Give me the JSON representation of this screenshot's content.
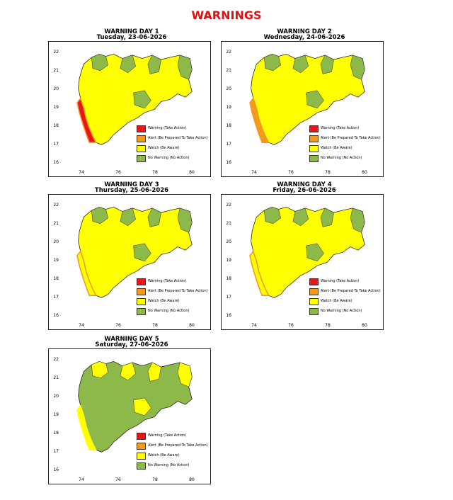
{
  "page_title": "WARNINGS",
  "legend": [
    {
      "label": "Warning (Take Action)",
      "color": "#e8161b"
    },
    {
      "label": "Alert (Be Prepared To Take Action)",
      "color": "#f39a1e"
    },
    {
      "label": "Watch (Be Aware)",
      "color": "#ffff00"
    },
    {
      "label": "No Warning (No Action)",
      "color": "#8db84a"
    }
  ],
  "axes": {
    "y_ticks": [
      "22",
      "21",
      "20",
      "19",
      "18",
      "17",
      "16"
    ],
    "x_ticks": [
      "74",
      "76",
      "78",
      "80"
    ]
  },
  "panels": [
    {
      "title": "WARNING DAY 1",
      "subtitle": "Tuesday, 23-06-2026",
      "dominant": "#ffff00",
      "secondary": "#8db84a",
      "coastal": "#e8161b",
      "coastal_edge": "#f39a1e"
    },
    {
      "title": "WARNING DAY 2",
      "subtitle": "Wednesday, 24-06-2026",
      "dominant": "#ffff00",
      "secondary": "#8db84a",
      "coastal": "#f39a1e",
      "coastal_edge": "#f39a1e"
    },
    {
      "title": "WARNING DAY 3",
      "subtitle": "Thursday, 25-06-2026",
      "dominant": "#ffff00",
      "secondary": "#8db84a",
      "coastal": "#ffff00",
      "coastal_edge": "#f39a1e"
    },
    {
      "title": "WARNING DAY 4",
      "subtitle": "Friday, 26-06-2026",
      "dominant": "#ffff00",
      "secondary": "#8db84a",
      "coastal": "#ffff00",
      "coastal_edge": "#f39a1e"
    },
    {
      "title": "WARNING DAY 5",
      "subtitle": "Saturday, 27-06-2026",
      "dominant": "#8db84a",
      "secondary": "#ffff00",
      "coastal": "#ffff00",
      "coastal_edge": "#ffff00"
    }
  ]
}
